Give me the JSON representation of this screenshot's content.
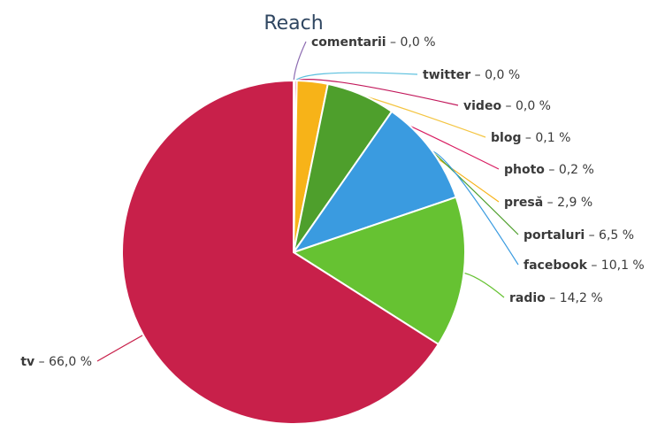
{
  "chart_data": {
    "type": "pie",
    "title": "Reach",
    "slices": [
      {
        "name": "comentarii",
        "value": 0.0,
        "value_label": "0,0 %",
        "color": "#8c6bb1"
      },
      {
        "name": "twitter",
        "value": 0.0,
        "value_label": "0,0 %",
        "color": "#5bc0de"
      },
      {
        "name": "video",
        "value": 0.0,
        "value_label": "0,0 %",
        "color": "#c2185b"
      },
      {
        "name": "blog",
        "value": 0.1,
        "value_label": "0,1 %",
        "color": "#f4c542"
      },
      {
        "name": "photo",
        "value": 0.2,
        "value_label": "0,2 %",
        "color": "#d81b60"
      },
      {
        "name": "presă",
        "value": 2.9,
        "value_label": "2,9 %",
        "color": "#f7b318"
      },
      {
        "name": "portaluri",
        "value": 6.5,
        "value_label": "6,5 %",
        "color": "#4e9f2c"
      },
      {
        "name": "facebook",
        "value": 10.1,
        "value_label": "10,1 %",
        "color": "#3a9be0"
      },
      {
        "name": "radio",
        "value": 14.2,
        "value_label": "14,2 %",
        "color": "#66c232"
      },
      {
        "name": "tv",
        "value": 66.0,
        "value_label": "66,0 %",
        "color": "#c8204a"
      }
    ],
    "label_separator": " – "
  }
}
